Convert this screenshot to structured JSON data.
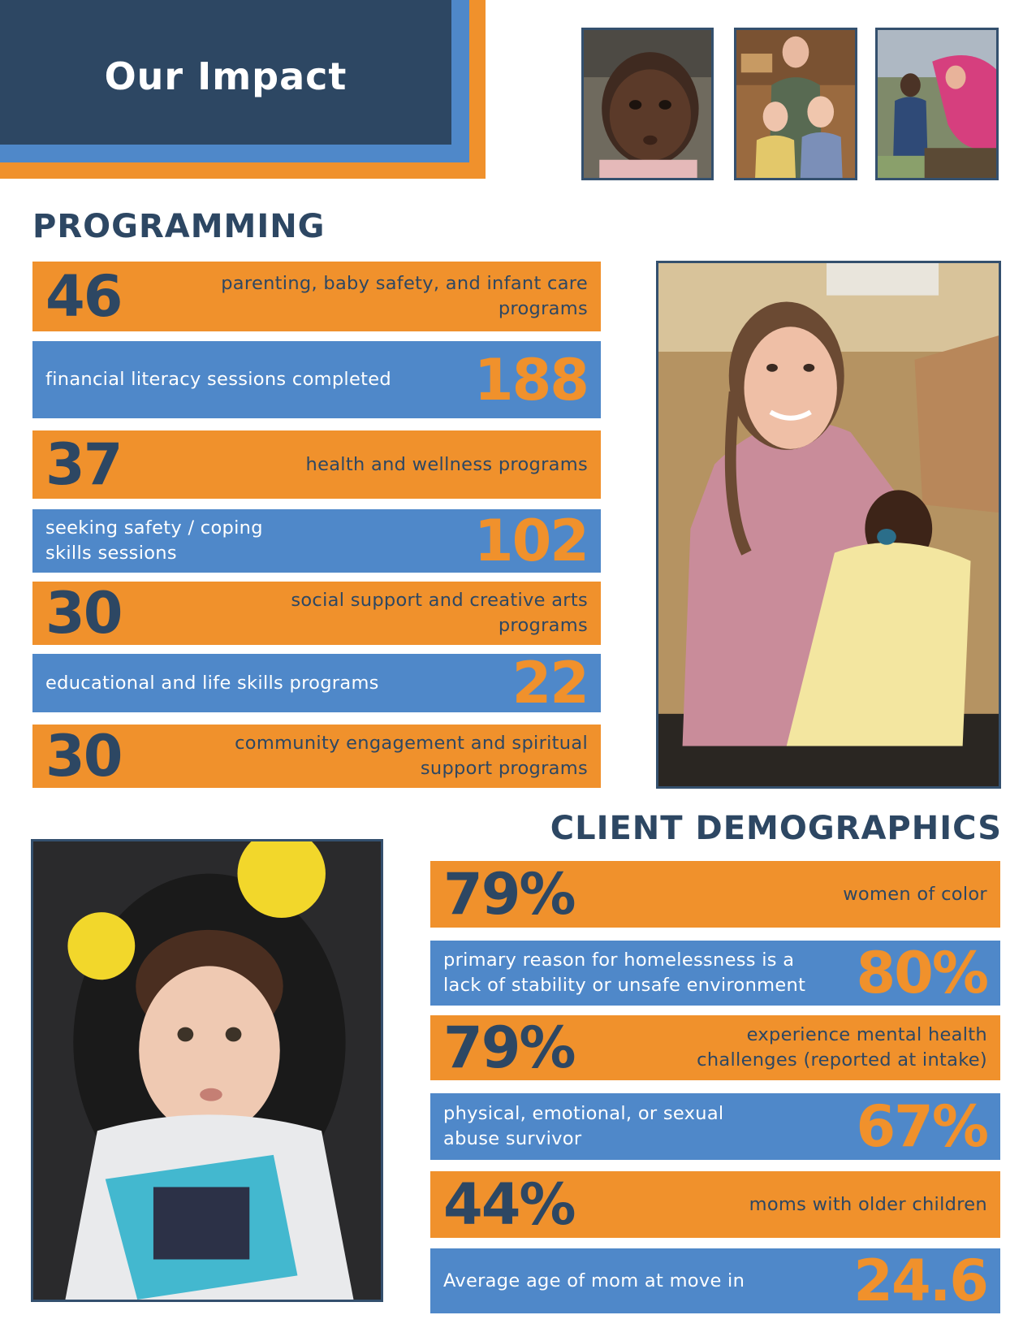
{
  "header": {
    "title": "Our Impact"
  },
  "photos": {
    "top": [
      "baby-portrait-photo",
      "family-photo",
      "children-gardening-photo"
    ],
    "mother": "mother-with-baby-photo",
    "toddler": "toddler-in-costume-photo"
  },
  "programming": {
    "title": "PROGRAMMING",
    "items": [
      {
        "value": "46",
        "label": "parenting, baby safety, and infant care programs"
      },
      {
        "value": "188",
        "label": "financial literacy sessions completed"
      },
      {
        "value": "37",
        "label": "health and wellness programs"
      },
      {
        "value": "102",
        "label": "seeking safety / coping skills sessions"
      },
      {
        "value": "30",
        "label": "social support and creative arts programs"
      },
      {
        "value": "22",
        "label": "educational and life skills programs"
      },
      {
        "value": "30",
        "label": "community engagement and spiritual support programs"
      }
    ]
  },
  "demographics": {
    "title": "CLIENT DEMOGRAPHICS",
    "items": [
      {
        "value": "79%",
        "label": "women of color"
      },
      {
        "value": "80%",
        "label": "primary reason for homelessness is a lack of stability or unsafe environment"
      },
      {
        "value": "79%",
        "label": "experience mental health challenges (reported at intake)"
      },
      {
        "value": "67%",
        "label": "physical, emotional, or sexual abuse survivor"
      },
      {
        "value": "44%",
        "label": "moms with older children"
      },
      {
        "value": "24.6",
        "label": "Average age of mom at move in"
      }
    ]
  },
  "colors": {
    "navy": "#2d4763",
    "blue": "#4f88c9",
    "orange": "#f0912c"
  }
}
